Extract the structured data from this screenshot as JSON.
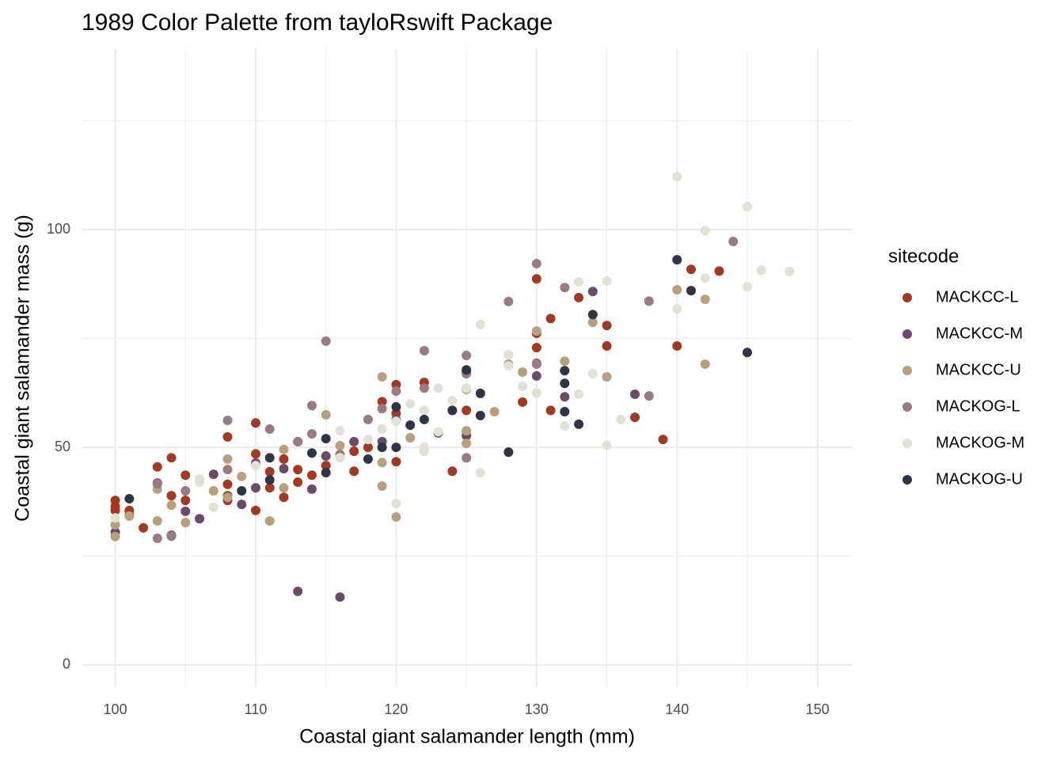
{
  "chart_data": {
    "type": "scatter",
    "title": "1989 Color Palette from tayloRswift Package",
    "x_label": "Coastal giant salamander length (mm)",
    "y_label": "Coastal giant salamander mass (g)",
    "legend_title": "sitecode",
    "legend_position": "right",
    "grid": true,
    "xlim": [
      97.6,
      152.5
    ],
    "ylim": [
      -5.1,
      141.5
    ],
    "xticks": [
      100,
      110,
      120,
      130,
      140,
      150
    ],
    "yticks": [
      0,
      50,
      100
    ],
    "series": [
      {
        "name": "MACKCC-L",
        "color": "#a43820",
        "x": [
          100,
          100,
          100,
          101,
          101,
          102,
          103,
          104,
          104,
          104,
          105,
          105,
          108,
          108,
          108,
          108,
          110,
          110,
          110,
          111,
          111,
          112,
          112,
          113,
          113,
          114,
          115,
          117,
          117,
          118,
          119,
          120,
          120,
          120,
          122,
          124,
          125,
          129,
          130,
          130,
          130,
          131,
          131,
          133,
          135,
          135,
          137,
          139,
          140,
          141,
          143
        ],
        "y": [
          37.8,
          36.4,
          35.5,
          35.5,
          34.5,
          31.5,
          45.5,
          47.6,
          38.9,
          29.8,
          43.6,
          37.8,
          52.4,
          41.5,
          38.9,
          37.8,
          55.6,
          48.5,
          35.5,
          40.7,
          44.4,
          47.3,
          38.5,
          44.9,
          42,
          43.6,
          45.8,
          49.1,
          44.5,
          50,
          60.5,
          64.4,
          57.8,
          46.7,
          64.9,
          44.5,
          58.5,
          60.4,
          88.7,
          76.2,
          72.9,
          79.6,
          58.5,
          84.4,
          78,
          73.3,
          56.9,
          51.8,
          73.3,
          90.9,
          90.5
        ]
      },
      {
        "name": "MACKCC-M",
        "color": "#6b4a6b",
        "x": [
          100,
          103,
          105,
          106,
          107,
          109,
          110,
          110,
          112,
          113,
          113,
          114,
          115,
          116,
          117,
          119,
          120,
          123,
          125,
          125,
          130,
          130,
          132,
          134,
          137
        ],
        "y": [
          30.5,
          41.8,
          35.3,
          33.6,
          43.8,
          36.9,
          40.7,
          46.4,
          45.1,
          51.3,
          16.9,
          40.4,
          48,
          15.6,
          51.3,
          51.3,
          56.4,
          53.3,
          52.7,
          67.3,
          69.3,
          66.4,
          61.6,
          85.8,
          62.2
        ]
      },
      {
        "name": "MACKCC-U",
        "color": "#b8a07c",
        "x": [
          100,
          100,
          101,
          103,
          103,
          104,
          105,
          107,
          108,
          108,
          109,
          111,
          112,
          112,
          115,
          116,
          119,
          119,
          119,
          120,
          121,
          125,
          125,
          125,
          127,
          128,
          129,
          130,
          132,
          134,
          135,
          140,
          142,
          142
        ],
        "y": [
          29.5,
          32.2,
          34.2,
          40.4,
          33.1,
          36.7,
          32.7,
          40,
          47.3,
          38.5,
          43.3,
          33.1,
          49.5,
          40.7,
          57.5,
          50.4,
          66.2,
          46.5,
          41.1,
          34,
          52.2,
          53.8,
          50.9,
          63.3,
          58.2,
          69.1,
          67.3,
          76.7,
          69.8,
          78.7,
          66.2,
          86.2,
          84,
          69.1
        ]
      },
      {
        "name": "MACKOG-L",
        "color": "#9a7b82",
        "x": [
          103,
          103,
          104,
          105,
          108,
          108,
          111,
          113,
          114,
          114,
          115,
          116,
          118,
          119,
          120,
          122,
          122,
          124,
          125,
          125,
          125,
          128,
          130,
          130,
          132,
          138,
          138,
          144
        ],
        "y": [
          41.6,
          29.1,
          29.6,
          40,
          56.2,
          44.9,
          54.2,
          51.3,
          59.6,
          53.1,
          74.4,
          48.4,
          56.4,
          58.9,
          62.9,
          72.2,
          63.6,
          58.5,
          71.1,
          66.9,
          47.6,
          83.5,
          92.2,
          69.1,
          86.7,
          83.6,
          61.8,
          97.3
        ]
      },
      {
        "name": "MACKOG-M",
        "color": "#e3e1d3",
        "x": [
          100,
          106,
          106,
          107,
          110,
          116,
          116,
          118,
          119,
          120,
          120,
          121,
          122,
          122,
          122,
          123,
          123,
          124,
          125,
          126,
          126,
          128,
          128,
          129,
          130,
          132,
          133,
          133,
          134,
          135,
          135,
          136,
          140,
          140,
          142,
          142,
          145,
          145,
          146,
          148
        ],
        "y": [
          33.8,
          42,
          42.7,
          36.2,
          45.8,
          53.8,
          47.6,
          51.8,
          54.2,
          37.1,
          56,
          60,
          50,
          49.1,
          58.5,
          63.6,
          53.6,
          60.7,
          63.6,
          78.2,
          44.2,
          71.3,
          68.7,
          64,
          62.5,
          54.9,
          88,
          62.2,
          66.9,
          88.2,
          50.5,
          56.4,
          112.2,
          81.8,
          99.8,
          88.9,
          105.3,
          86.9,
          90.7,
          90.4
        ]
      },
      {
        "name": "MACKOG-U",
        "color": "#2f3448",
        "x": [
          101,
          109,
          111,
          111,
          114,
          115,
          115,
          118,
          119,
          120,
          120,
          121,
          122,
          124,
          125,
          126,
          126,
          128,
          132,
          132,
          132,
          133,
          134,
          140,
          141,
          145
        ],
        "y": [
          38.2,
          40,
          47.6,
          42.5,
          48.7,
          52,
          44.2,
          47.3,
          50,
          59.3,
          50,
          55.1,
          56.4,
          58.5,
          67.8,
          62.4,
          57.3,
          48.9,
          67.6,
          64.7,
          58.2,
          55.3,
          80.5,
          93.1,
          86,
          71.8
        ]
      }
    ]
  }
}
